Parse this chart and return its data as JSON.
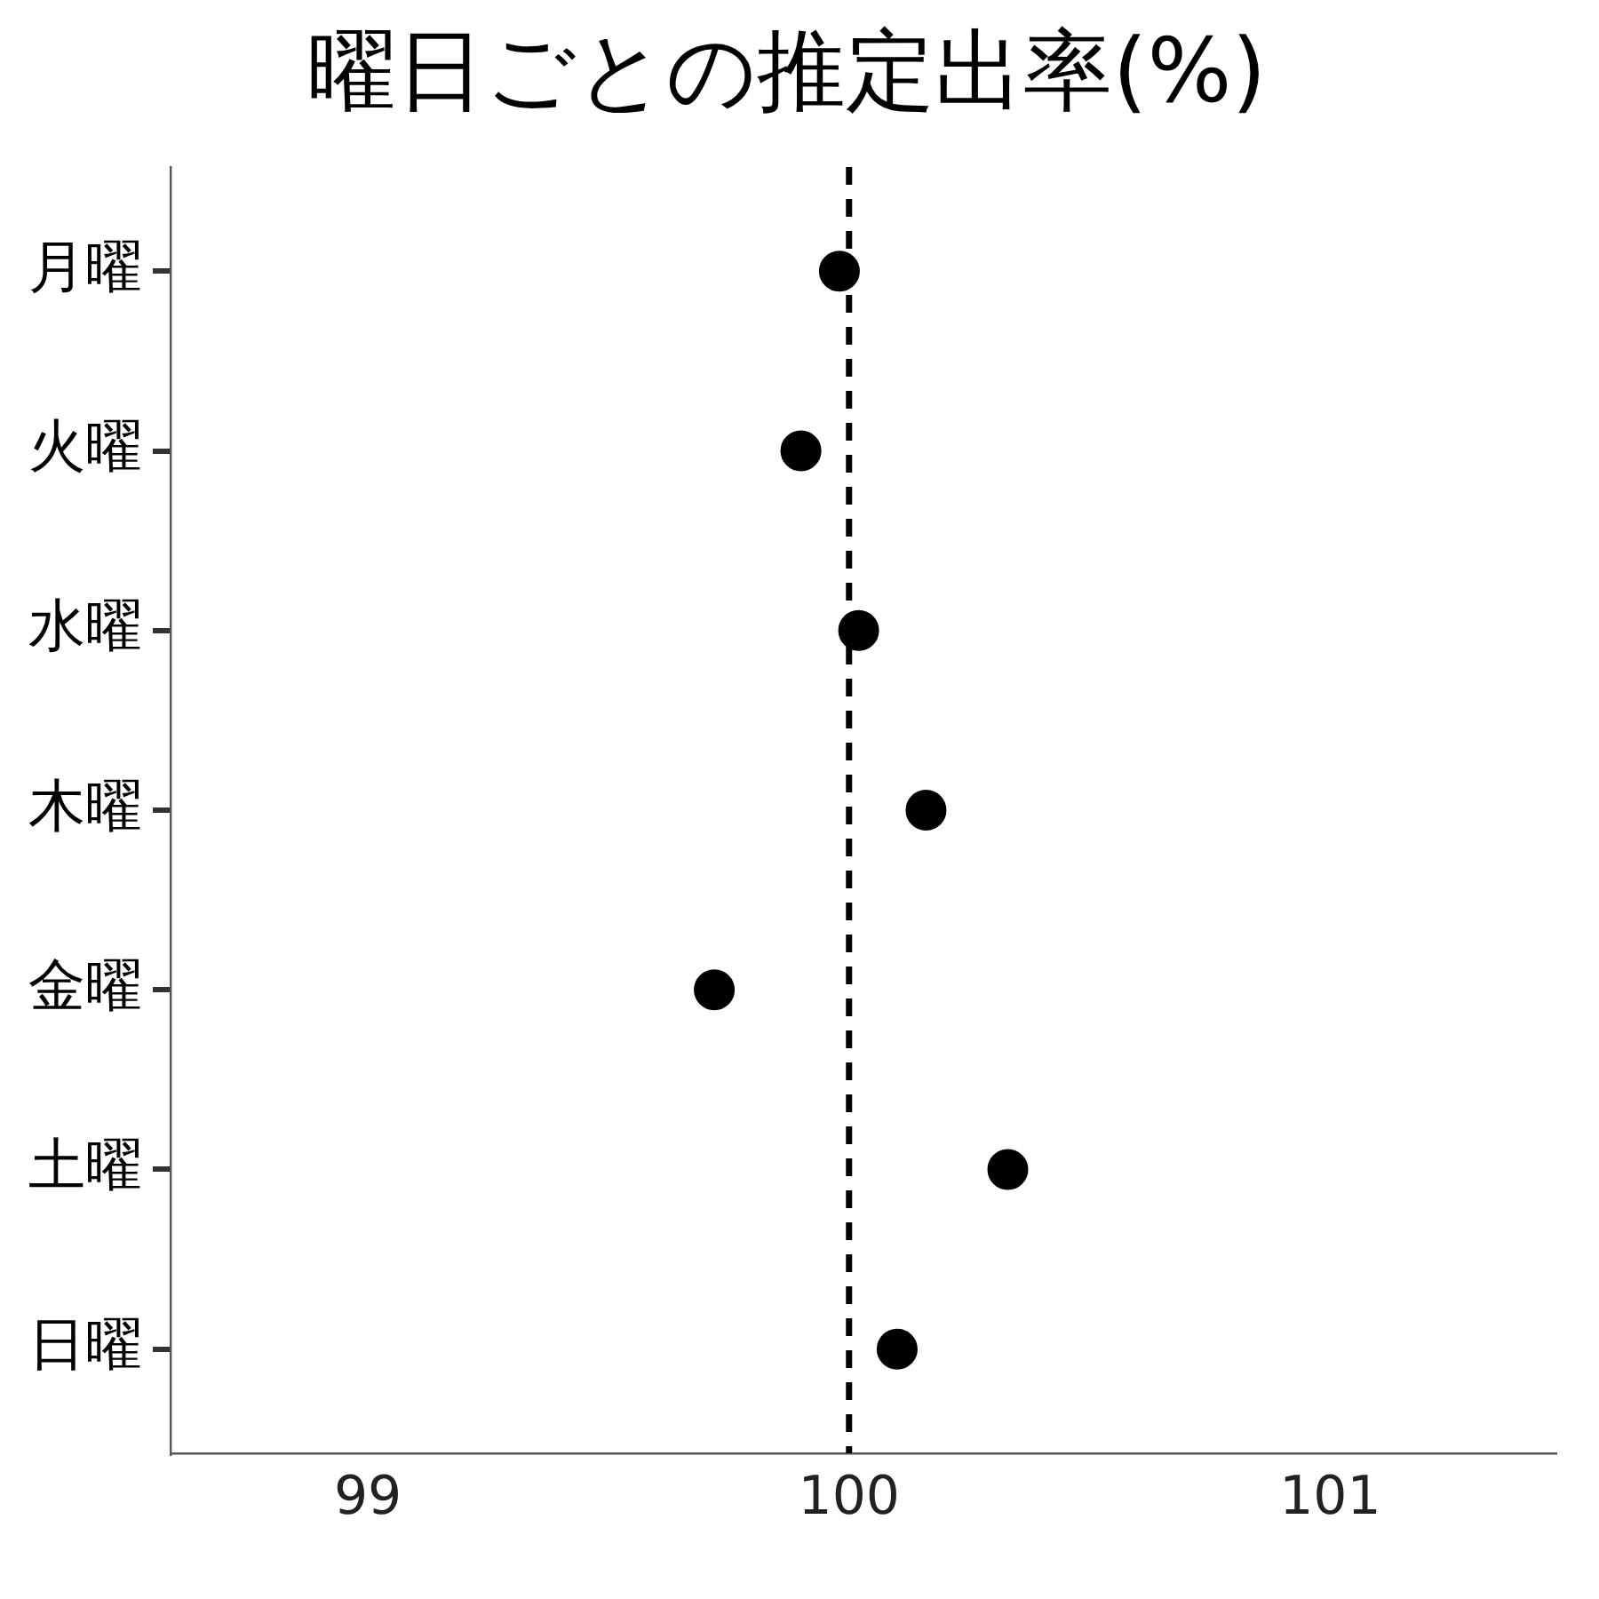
{
  "chart_data": {
    "type": "scatter",
    "title": "曜日ごとの推定出率(%)",
    "orientation": "horizontal",
    "categories": [
      "月曜",
      "火曜",
      "水曜",
      "木曜",
      "金曜",
      "土曜",
      "日曜"
    ],
    "values": [
      99.98,
      99.9,
      100.02,
      100.16,
      99.72,
      100.33,
      100.1
    ],
    "color": "#000000",
    "marker": "circle",
    "xlim": [
      98.59,
      101.47
    ],
    "xticks": [
      99,
      100,
      101
    ],
    "ref_lines": [
      {
        "axis": "x",
        "value": 100,
        "color": "#000000",
        "line_style": "dashed"
      }
    ]
  }
}
